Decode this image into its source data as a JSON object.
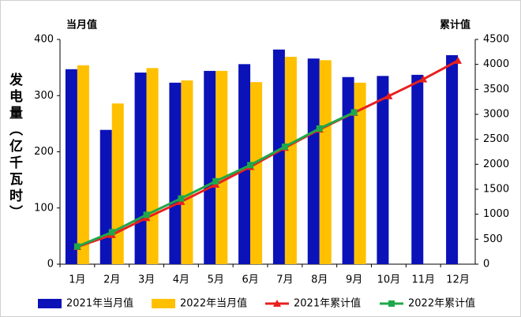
{
  "chart_data": {
    "type": "bar",
    "y_label": "发电量（亿千瓦时）",
    "y_axis_title": "当月值",
    "y2_axis_title": "累计值",
    "categories": [
      "1月",
      "2月",
      "3月",
      "4月",
      "5月",
      "6月",
      "7月",
      "8月",
      "9月",
      "10月",
      "11月",
      "12月"
    ],
    "series": [
      {
        "name": "2021年当月值",
        "color": "#0b12b8",
        "mark": "bar",
        "axis": "y",
        "values": [
          347,
          239,
          341,
          323,
          344,
          356,
          382,
          366,
          333,
          335,
          337,
          372
        ]
      },
      {
        "name": "2022年当月值",
        "color": "#ffc000",
        "mark": "bar",
        "axis": "y",
        "values": [
          354,
          286,
          349,
          327,
          344,
          324,
          369,
          363,
          323,
          null,
          null,
          null
        ]
      },
      {
        "name": "2021年累计值",
        "color": "#e8201e",
        "mark": "line",
        "marker": "triangle",
        "axis": "y2",
        "values": [
          347,
          586,
          927,
          1250,
          1594,
          1950,
          2332,
          2698,
          3031,
          3366,
          3703,
          4075
        ]
      },
      {
        "name": "2022年累计值",
        "color": "#1fa84a",
        "mark": "line",
        "marker": "square",
        "axis": "y2",
        "values": [
          354,
          640,
          989,
          1316,
          1660,
          1984,
          2353,
          2716,
          3039,
          null,
          null,
          null
        ]
      }
    ],
    "ylim": [
      0,
      400
    ],
    "yticks": [
      0,
      100,
      200,
      300,
      400
    ],
    "y2lim": [
      0,
      4500
    ],
    "y2ticks": [
      0,
      500,
      1000,
      1500,
      2000,
      2500,
      3000,
      3500,
      4000,
      4500
    ]
  }
}
